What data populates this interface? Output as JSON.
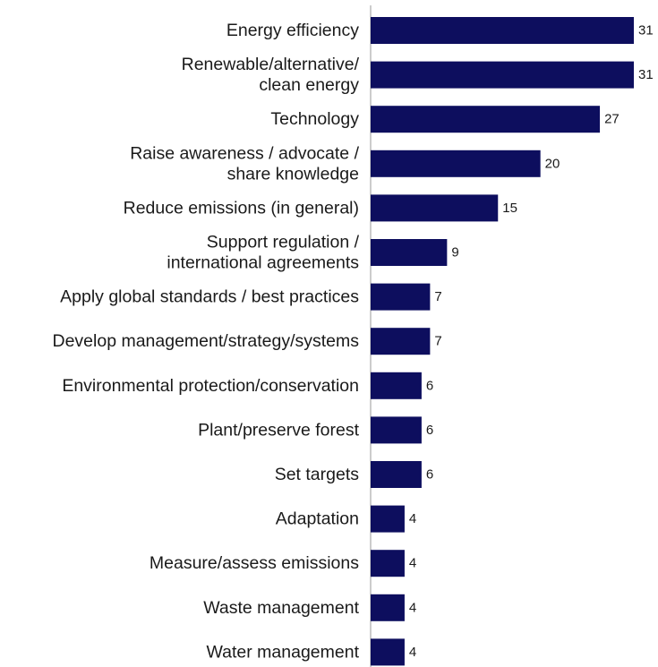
{
  "chart_data": {
    "type": "bar",
    "orientation": "horizontal",
    "categories": [
      [
        "Energy efficiency"
      ],
      [
        "Renewable/alternative/",
        "clean energy"
      ],
      [
        "Technology"
      ],
      [
        "Raise awareness / advocate /",
        "share knowledge"
      ],
      [
        "Reduce emissions (in general)"
      ],
      [
        "Support regulation /",
        "international agreements"
      ],
      [
        "Apply global standards / best practices"
      ],
      [
        "Develop management/strategy/systems"
      ],
      [
        "Environmental protection/conservation"
      ],
      [
        "Plant/preserve forest"
      ],
      [
        "Set targets"
      ],
      [
        "Adaptation"
      ],
      [
        "Measure/assess emissions"
      ],
      [
        "Waste management"
      ],
      [
        "Water management"
      ]
    ],
    "values": [
      31,
      31,
      27,
      20,
      15,
      9,
      7,
      7,
      6,
      6,
      6,
      4,
      4,
      4,
      4
    ],
    "data_labels": [
      "31",
      "31",
      "27",
      "20",
      "15",
      "9",
      "7",
      "7",
      "6",
      "6",
      "6",
      "4",
      "4",
      "4",
      "4"
    ],
    "xlim": [
      0,
      31
    ],
    "grid": false,
    "legend": "none",
    "bar_color": "#0d0e5e",
    "axis_color": "#9a9a9a"
  }
}
